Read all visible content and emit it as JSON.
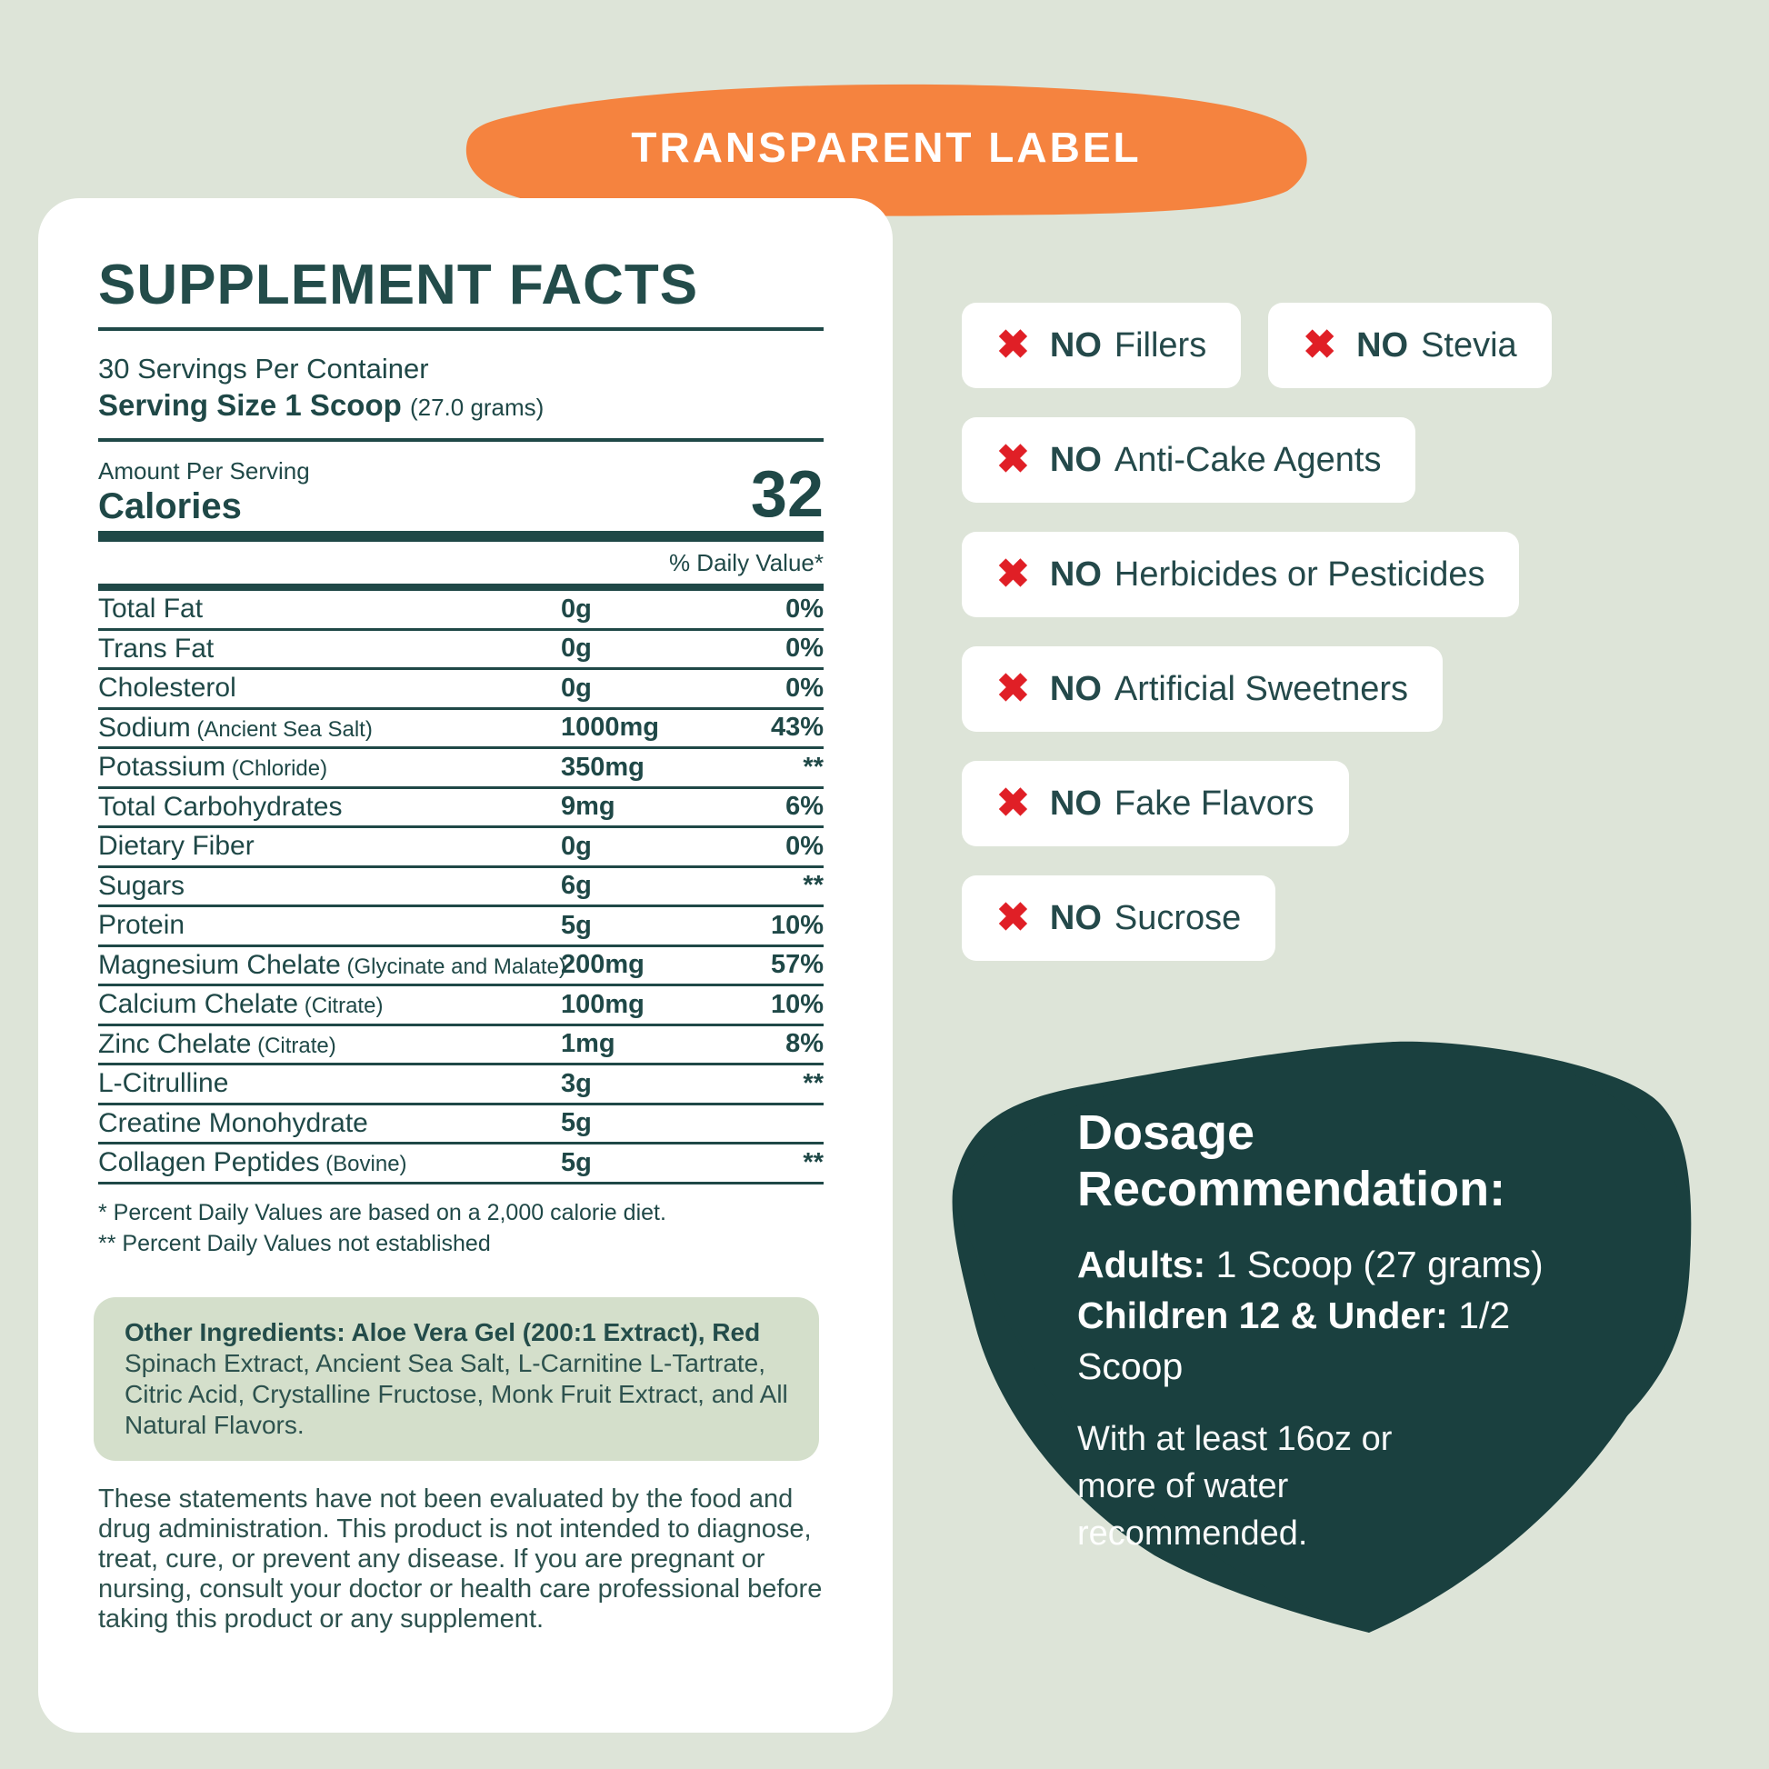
{
  "banner": {
    "label": "TRANSPARENT LABEL",
    "bg_color": "#f5833f",
    "text_color": "#ffffff"
  },
  "panel": {
    "title": "SUPPLEMENT FACTS",
    "servings_per_container": "30 Servings Per Container",
    "serving_size_label": "Serving Size 1 Scoop",
    "serving_size_detail": "(27.0 grams)",
    "amount_per_serving": "Amount Per Serving",
    "calories_label": "Calories",
    "calories_value": "32",
    "daily_value_header": "% Daily Value*",
    "rows": [
      {
        "name": "Total Fat",
        "detail": "",
        "amount": "0g",
        "dv": "0%"
      },
      {
        "name": "Trans Fat",
        "detail": "",
        "amount": "0g",
        "dv": "0%"
      },
      {
        "name": "Cholesterol",
        "detail": "",
        "amount": "0g",
        "dv": "0%"
      },
      {
        "name": "Sodium",
        "detail": "(Ancient Sea Salt)",
        "amount": "1000mg",
        "dv": "43%"
      },
      {
        "name": "Potassium",
        "detail": "(Chloride)",
        "amount": "350mg",
        "dv": "**"
      },
      {
        "name": "Total Carbohydrates",
        "detail": "",
        "amount": "9mg",
        "dv": "6%"
      },
      {
        "name": "Dietary Fiber",
        "detail": "",
        "amount": "0g",
        "dv": "0%"
      },
      {
        "name": "Sugars",
        "detail": "",
        "amount": "6g",
        "dv": "**"
      },
      {
        "name": "Protein",
        "detail": "",
        "amount": "5g",
        "dv": "10%"
      },
      {
        "name": "Magnesium Chelate",
        "detail": "(Glycinate and Malate)",
        "amount": "200mg",
        "dv": "57%"
      },
      {
        "name": "Calcium Chelate",
        "detail": "(Citrate)",
        "amount": "100mg",
        "dv": "10%"
      },
      {
        "name": "Zinc Chelate",
        "detail": "(Citrate)",
        "amount": "1mg",
        "dv": "8%"
      },
      {
        "name": "L-Citrulline",
        "detail": "",
        "amount": "3g",
        "dv": "**"
      },
      {
        "name": "Creatine Monohydrate",
        "detail": "",
        "amount": "5g",
        "dv": ""
      },
      {
        "name": "Collagen Peptides",
        "detail": "(Bovine)",
        "amount": "5g",
        "dv": "**"
      }
    ],
    "footnotes": [
      "* Percent Daily Values are based on a 2,000 calorie diet.",
      "** Percent Daily Values not established"
    ],
    "other_ingredients_bold": "Other Ingredients: Aloe Vera Gel (200:1 Extract), Red",
    "other_ingredients_rest": "Spinach Extract, Ancient Sea Salt, L-Carnitine L-Tartrate, Citric Acid, Crystalline Fructose, Monk Fruit Extract, and All Natural Flavors.",
    "disclaimer": "These statements have not been evaluated by the food and drug administration. This product is not intended to diagnose, treat, cure, or prevent any disease. If you are pregnant or nursing, consult your doctor or health care professional before taking this product or any supplement."
  },
  "badges": [
    {
      "bold": "NO",
      "rest": "Fillers",
      "row": 0
    },
    {
      "bold": "NO",
      "rest": "Stevia",
      "row": 0
    },
    {
      "bold": "NO",
      "rest": "Anti-Cake Agents",
      "row": 1
    },
    {
      "bold": "NO",
      "rest": "Herbicides or Pesticides",
      "row": 2
    },
    {
      "bold": "NO",
      "rest": "Artificial Sweetners",
      "row": 3
    },
    {
      "bold": "NO",
      "rest": "Fake Flavors",
      "row": 4
    },
    {
      "bold": "NO",
      "rest": "Sucrose",
      "row": 5
    }
  ],
  "badge_x_icon": "✖",
  "dosage": {
    "title": "Dosage Recommendation:",
    "adults_label": "Adults:",
    "adults_value": "1 Scoop (27 grams)",
    "children_label": "Children 12 & Under:",
    "children_value": "1/2 Scoop",
    "note": "With at least 16oz or more of water recommended."
  },
  "colors": {
    "background": "#dde4d8",
    "card": "#ffffff",
    "teal_text": "#1f4847",
    "dosage_blob": "#1a403f",
    "banner_orange": "#f5833f",
    "x_red": "#e01f26",
    "ingredients_box": "#d4dfcb"
  }
}
